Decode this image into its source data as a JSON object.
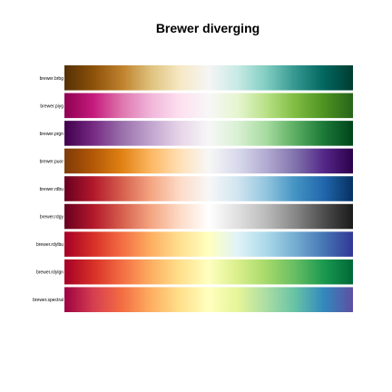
{
  "chart_data": {
    "type": "heatmap",
    "title": "Brewer diverging",
    "xlabel": "",
    "ylabel": "",
    "grid": false,
    "legend": "none",
    "rows": [
      {
        "label": "brewer.brbg",
        "colors": [
          "#543005",
          "#8c510a",
          "#bf812d",
          "#dfc27d",
          "#f6e8c3",
          "#f5f5f5",
          "#c7eae5",
          "#80cdc1",
          "#35978f",
          "#01665e",
          "#003c30"
        ]
      },
      {
        "label": "brewer.piyg",
        "colors": [
          "#8e0152",
          "#c51b7d",
          "#de77ae",
          "#f1b6da",
          "#fde0ef",
          "#f7f7f7",
          "#e6f5d0",
          "#b8e186",
          "#7fbc41",
          "#4d9221",
          "#276419"
        ]
      },
      {
        "label": "brewer.prgn",
        "colors": [
          "#40004b",
          "#762a83",
          "#9970ab",
          "#c2a5cf",
          "#e7d4e8",
          "#f7f7f7",
          "#d9f0d3",
          "#a6dba0",
          "#5aae61",
          "#1b7837",
          "#00441b"
        ]
      },
      {
        "label": "brewer.puor",
        "colors": [
          "#7f3b08",
          "#b35806",
          "#e08214",
          "#fdb863",
          "#fee0b6",
          "#f7f7f7",
          "#d8daeb",
          "#b2abd2",
          "#8073ac",
          "#542788",
          "#2d004b"
        ]
      },
      {
        "label": "brewer.rdbu",
        "colors": [
          "#67001f",
          "#b2182b",
          "#d6604d",
          "#f4a582",
          "#fddbc7",
          "#f7f7f7",
          "#d1e5f0",
          "#92c5de",
          "#4393c3",
          "#2166ac",
          "#053061"
        ]
      },
      {
        "label": "brewer.rdgy",
        "colors": [
          "#67001f",
          "#b2182b",
          "#d6604d",
          "#f4a582",
          "#fddbc7",
          "#ffffff",
          "#e0e0e0",
          "#bababa",
          "#878787",
          "#4d4d4d",
          "#1a1a1a"
        ]
      },
      {
        "label": "brewer.rdylbu",
        "colors": [
          "#a50026",
          "#d73027",
          "#f46d43",
          "#fdae61",
          "#fee090",
          "#ffffbf",
          "#e0f3f8",
          "#abd9e9",
          "#74add1",
          "#4575b4",
          "#313695"
        ]
      },
      {
        "label": "brewer.rdylgn",
        "colors": [
          "#a50026",
          "#d73027",
          "#f46d43",
          "#fdae61",
          "#fee08b",
          "#ffffbf",
          "#d9ef8b",
          "#a6d96a",
          "#66bd63",
          "#1a9850",
          "#006837"
        ]
      },
      {
        "label": "brewer.spectral",
        "colors": [
          "#9e0142",
          "#d53e4f",
          "#f46d43",
          "#fdae61",
          "#fee08b",
          "#ffffbf",
          "#e6f598",
          "#abdda4",
          "#66c2a5",
          "#3288bd",
          "#5e4fa2"
        ]
      }
    ]
  }
}
